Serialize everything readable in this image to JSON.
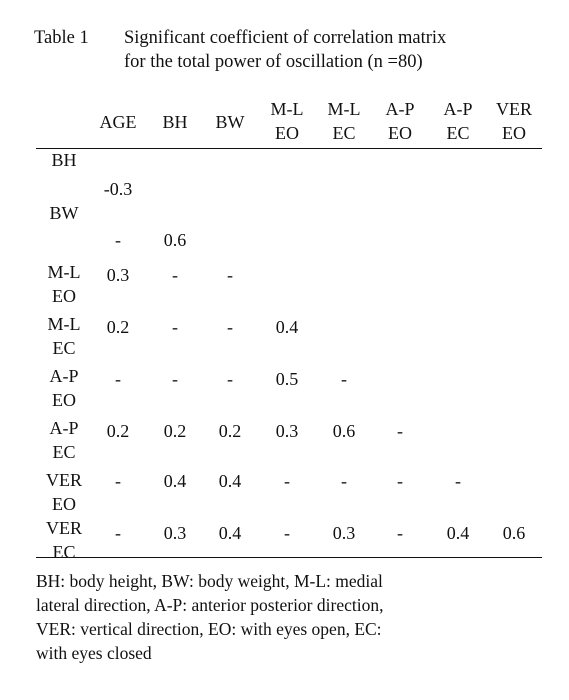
{
  "caption": {
    "label": "Table 1",
    "line1": "Significant coefficient of correlation matrix",
    "line2": "for the total power of oscillation (n =80)"
  },
  "columns": [
    {
      "l1": "AGE",
      "l2": ""
    },
    {
      "l1": "BH",
      "l2": ""
    },
    {
      "l1": "BW",
      "l2": ""
    },
    {
      "l1": "M-L",
      "l2": "EO"
    },
    {
      "l1": "M-L",
      "l2": "EC"
    },
    {
      "l1": "A-P",
      "l2": "EO"
    },
    {
      "l1": "A-P",
      "l2": "EC"
    },
    {
      "l1": "VER",
      "l2": "EO"
    }
  ],
  "rows": [
    {
      "l1": "BH",
      "l2": "",
      "values": [
        "-0.3"
      ]
    },
    {
      "l1": "BW",
      "l2": "",
      "values": [
        "-",
        "0.6"
      ]
    },
    {
      "l1": "M-L",
      "l2": "EO",
      "values": [
        "0.3",
        "-",
        "-"
      ]
    },
    {
      "l1": "M-L",
      "l2": "EC",
      "values": [
        "0.2",
        "-",
        "-",
        "0.4"
      ]
    },
    {
      "l1": "A-P",
      "l2": "EO",
      "values": [
        "-",
        "-",
        "-",
        "0.5",
        "-"
      ]
    },
    {
      "l1": "A-P",
      "l2": "EC",
      "values": [
        "0.2",
        "0.2",
        "0.2",
        "0.3",
        "0.6",
        "-"
      ]
    },
    {
      "l1": "VER",
      "l2": "EO",
      "values": [
        "-",
        "0.4",
        "0.4",
        "-",
        "-",
        "-",
        "-"
      ]
    },
    {
      "l1": "VER",
      "l2": "EC",
      "values": [
        "-",
        "0.3",
        "0.4",
        "-",
        "0.3",
        "-",
        "0.4",
        "0.6"
      ]
    }
  ],
  "footnote": {
    "line1": "BH: body height, BW: body weight, M-L: medial",
    "line2": "lateral direction, A-P: anterior posterior direction,",
    "line3": "VER: vertical direction, EO: with eyes open, EC:",
    "line4": "with eyes closed"
  }
}
